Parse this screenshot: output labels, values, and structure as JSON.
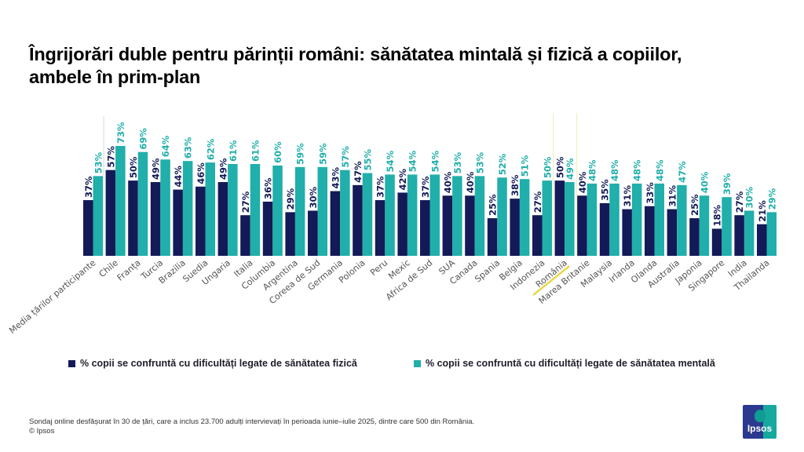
{
  "title": "Îngrijorări duble pentru părinții români: sănătatea mintală și fizică a copiilor, ambele în prim-plan",
  "colors": {
    "physical": "#141a57",
    "mental": "#20afaa",
    "highlight": "#e8d84a",
    "label_text": "#555555"
  },
  "chart_data": {
    "type": "bar",
    "title": "Îngrijorări duble pentru părinții români: sănătatea mintală și fizică a copiilor, ambele în prim-plan",
    "xlabel": "",
    "ylabel": "",
    "ylim": [
      0,
      80
    ],
    "grid": false,
    "legend_position": "bottom",
    "highlighted_category": "România",
    "categories": [
      "Media țărilor participante",
      "Chile",
      "Franța",
      "Turcia",
      "Brazilia",
      "Suedia",
      "Ungaria",
      "Italia",
      "Columbia",
      "Argentina",
      "Coreea de Sud",
      "Germania",
      "Polonia",
      "Peru",
      "Mexic",
      "Africa de Sud",
      "SUA",
      "Canada",
      "Spania",
      "Belgia",
      "Indonezia",
      "România",
      "Marea Britanie",
      "Malaysia",
      "Irlanda",
      "Olanda",
      "Australia",
      "Japonia",
      "Singapore",
      "India",
      "Thailanda"
    ],
    "series": [
      {
        "name": "% copii se confruntă cu dificultăți legate de sănătatea fizică",
        "values": [
          37,
          57,
          50,
          49,
          44,
          46,
          49,
          27,
          36,
          29,
          30,
          43,
          47,
          37,
          42,
          37,
          40,
          40,
          25,
          38,
          27,
          50,
          40,
          35,
          31,
          33,
          31,
          25,
          18,
          27,
          21
        ]
      },
      {
        "name": "% copii se confruntă cu dificultăți legate de sănătatea mentală",
        "values": [
          53,
          73,
          69,
          64,
          63,
          62,
          61,
          61,
          60,
          59,
          59,
          57,
          55,
          54,
          54,
          54,
          53,
          53,
          52,
          51,
          50,
          49,
          48,
          48,
          48,
          48,
          47,
          40,
          39,
          30,
          29
        ]
      }
    ]
  },
  "legend": {
    "physical": "% copii se confruntă cu dificultăți legate de sănătatea fizică",
    "mental": "% copii se confruntă cu dificultăți legate de sănătatea mentală"
  },
  "footer": {
    "line1": "Sondaj online desfășurat în 30 de țări, care a inclus 23.700 adulți intervievați în perioada iunie–iulie 2025, dintre care 500 din România.",
    "line2": "© Ipsos"
  },
  "logo": {
    "text": "Ipsos",
    "icon": "ipsos-head-icon"
  }
}
